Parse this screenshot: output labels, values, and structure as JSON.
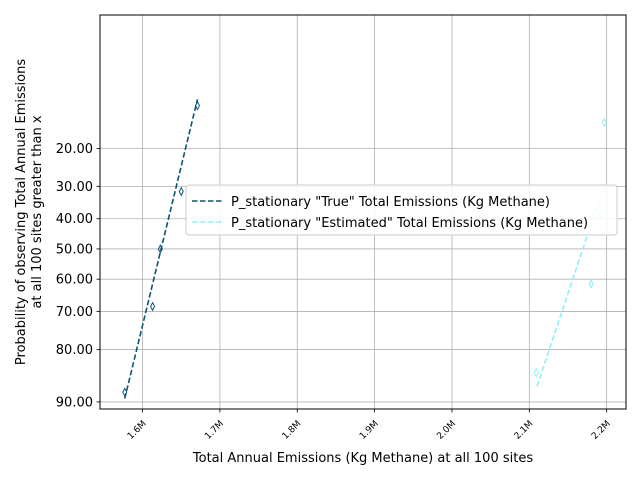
{
  "chart_data": {
    "type": "scatter",
    "xlabel": "Total Annual Emissions (Kg Methane) at all 100 sites",
    "ylabel_lines": [
      "Probability of observing Total Annual Emissions",
      "at all 100 sites greater than x"
    ],
    "x_ticks": [
      1600000,
      1700000,
      1800000,
      1900000,
      2000000,
      2100000,
      2200000
    ],
    "x_tick_labels": [
      "1.6M",
      "1.7M",
      "1.8M",
      "1.9M",
      "2.0M",
      "2.1M",
      "2.2M"
    ],
    "y_ticks": [
      20,
      30,
      40,
      50,
      60,
      70,
      80,
      90
    ],
    "y_tick_labels": [
      "20.00",
      "30.00",
      "40.00",
      "50.00",
      "60.00",
      "70.00",
      "80.00",
      "90.00"
    ],
    "y_scale": "probit",
    "xlim": [
      1545000,
      2225000
    ],
    "ylim": [
      2.5,
      91
    ],
    "grid": true,
    "legend_placement": "center-right",
    "series": [
      {
        "name": "P_stationary \"True\" Total Emissions (Kg Methane)",
        "color": "#0d5475",
        "marker": "thin-diamond-open",
        "points": [
          {
            "x": 1577000,
            "y": 88.5
          },
          {
            "x": 1613000,
            "y": 68.5
          },
          {
            "x": 1623000,
            "y": 50.0
          },
          {
            "x": 1650000,
            "y": 31.5
          },
          {
            "x": 1671000,
            "y": 11.5
          }
        ],
        "fit_line": [
          {
            "x": 1577000,
            "y": 89.5
          },
          {
            "x": 1671000,
            "y": 10.5
          }
        ]
      },
      {
        "name": "P_stationary \"Estimated\" Total Emissions (Kg Methane)",
        "color": "#8ef0fa",
        "marker": "thin-diamond-open",
        "points": [
          {
            "x": 2109000,
            "y": 85.0
          },
          {
            "x": 2180000,
            "y": 61.5
          },
          {
            "x": 2193000,
            "y": 38.5
          },
          {
            "x": 2197000,
            "y": 14.5
          }
        ],
        "fit_line": [
          {
            "x": 2110000,
            "y": 87.5
          },
          {
            "x": 2197000,
            "y": 29.5
          }
        ]
      }
    ]
  }
}
